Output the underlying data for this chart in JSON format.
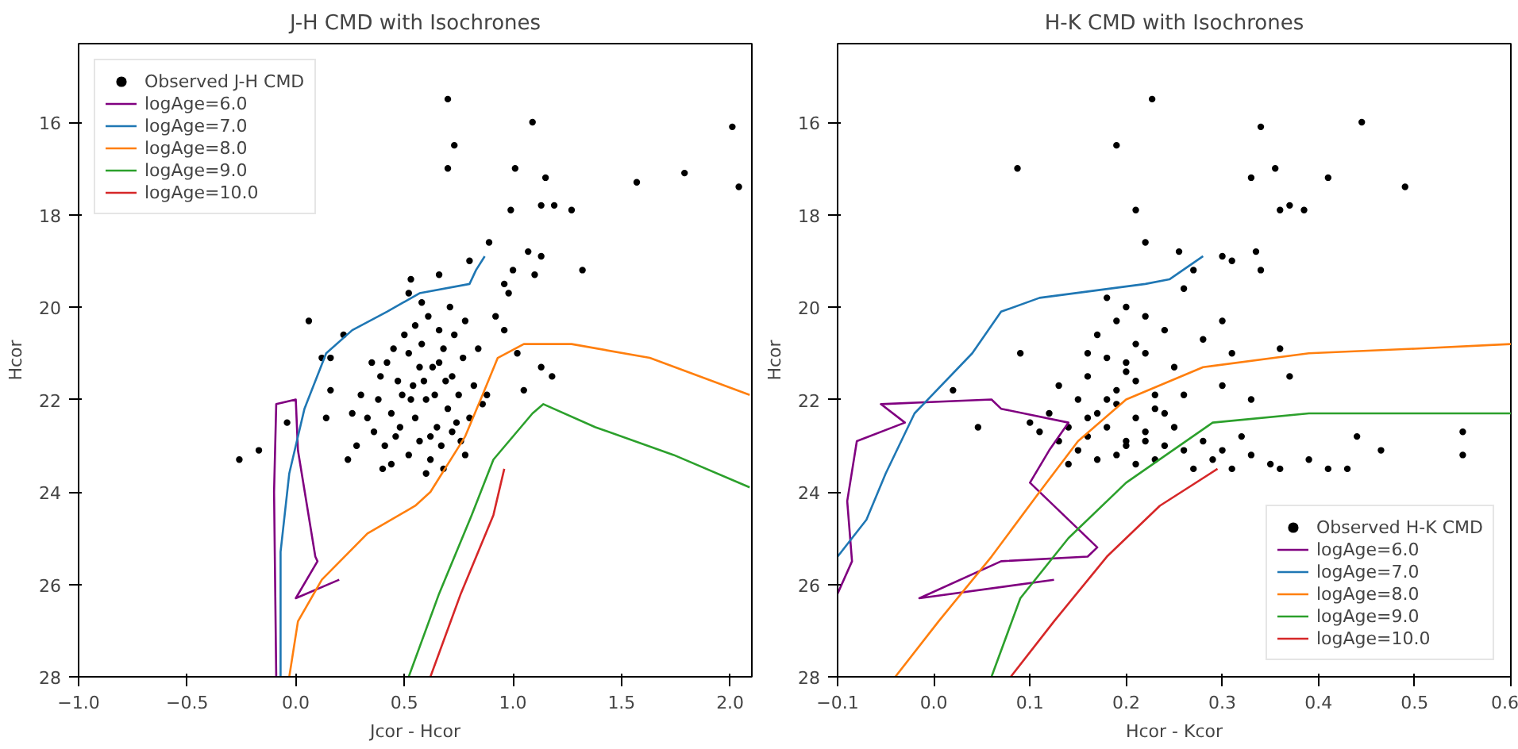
{
  "chart_data": [
    {
      "type": "scatter",
      "title": "J-H CMD with Isochrones",
      "xlabel": "Jcor - Hcor",
      "ylabel": "Hcor",
      "xlim": [
        -1.0,
        2.1
      ],
      "ylim": [
        28,
        14.3
      ],
      "xticks": [
        {
          "value": -1.0,
          "label": "−1.0"
        },
        {
          "value": -0.5,
          "label": "−0.5"
        },
        {
          "value": 0.0,
          "label": "0.0"
        },
        {
          "value": 0.5,
          "label": "0.5"
        },
        {
          "value": 1.0,
          "label": "1.0"
        },
        {
          "value": 1.5,
          "label": "1.5"
        },
        {
          "value": 2.0,
          "label": "2.0"
        }
      ],
      "yticks": [
        16,
        18,
        20,
        22,
        24,
        26,
        28
      ],
      "grid": false,
      "legend": "top left",
      "series": [
        {
          "name": "Observed J-H CMD",
          "marker": "circle",
          "color": "#000000",
          "x": [
            0.7,
            1.09,
            0.73,
            0.7,
            1.01,
            1.15,
            2.01,
            1.57,
            1.79,
            2.04,
            0.99,
            1.13,
            1.19,
            1.27,
            0.89,
            1.07,
            1.13,
            1.1,
            1.32,
            1.0,
            0.96,
            0.98,
            0.06,
            0.22,
            0.16,
            0.12,
            0.16,
            0.14,
            -0.04,
            -0.17,
            -0.26,
            0.24,
            0.4,
            1.02,
            1.13,
            1.18,
            1.05,
            0.96,
            0.92,
            0.53,
            0.66,
            0.8,
            0.42,
            0.47,
            0.52,
            0.58,
            0.63,
            0.68,
            0.72,
            0.77,
            0.82,
            0.38,
            0.44,
            0.49,
            0.55,
            0.6,
            0.65,
            0.7,
            0.75,
            0.8,
            0.86,
            0.36,
            0.41,
            0.46,
            0.52,
            0.57,
            0.62,
            0.67,
            0.72,
            0.78,
            0.33,
            0.3,
            0.55,
            0.61,
            0.66,
            0.71,
            0.5,
            0.45,
            0.59,
            0.64,
            0.69,
            0.74,
            0.54,
            0.48,
            0.39,
            0.35,
            0.62,
            0.57,
            0.53,
            0.66,
            0.88,
            0.84,
            0.6,
            0.68,
            0.44,
            0.73,
            0.78,
            0.58,
            0.52,
            0.26,
            0.28,
            0.76
          ],
          "values": [
            15.5,
            16.0,
            16.5,
            17.0,
            17.0,
            17.2,
            16.1,
            17.3,
            17.1,
            17.4,
            17.9,
            17.8,
            17.8,
            17.9,
            18.6,
            18.8,
            18.9,
            19.3,
            19.2,
            19.2,
            19.5,
            19.7,
            20.3,
            20.6,
            21.1,
            21.1,
            21.8,
            22.4,
            22.5,
            23.1,
            23.3,
            23.3,
            23.5,
            21.0,
            21.3,
            21.5,
            21.8,
            20.5,
            20.2,
            19.4,
            19.3,
            19.0,
            21.2,
            21.6,
            21.0,
            20.8,
            21.3,
            20.9,
            21.5,
            21.1,
            21.7,
            22.0,
            22.3,
            21.9,
            22.4,
            22.0,
            22.6,
            22.2,
            21.9,
            22.4,
            22.1,
            22.7,
            23.0,
            22.8,
            23.2,
            22.9,
            23.3,
            23.0,
            22.7,
            23.2,
            22.4,
            21.9,
            20.4,
            20.2,
            20.5,
            20.0,
            20.6,
            20.9,
            21.6,
            21.9,
            21.6,
            22.5,
            21.7,
            22.6,
            21.5,
            21.2,
            22.8,
            21.3,
            22.0,
            21.2,
            21.9,
            20.9,
            23.6,
            23.5,
            23.4,
            20.6,
            20.3,
            19.9,
            19.7,
            22.3,
            23.0,
            22.9
          ]
        },
        {
          "name": "logAge=6.0",
          "type": "line",
          "color": "#800080",
          "x": [
            -0.09,
            -0.1,
            -0.09,
            0.0,
            0.01,
            0.09,
            0.1,
            0.0,
            0.2
          ],
          "values": [
            28,
            24.0,
            22.1,
            22.0,
            23.1,
            25.4,
            25.5,
            26.3,
            25.9
          ]
        },
        {
          "name": "logAge=7.0",
          "type": "line",
          "color": "#1f77b4",
          "x": [
            -0.07,
            -0.07,
            -0.03,
            0.04,
            0.14,
            0.26,
            0.42,
            0.57,
            0.8,
            0.83,
            0.87
          ],
          "values": [
            28,
            25.3,
            23.6,
            22.2,
            21.0,
            20.5,
            20.1,
            19.7,
            19.5,
            19.2,
            18.9
          ]
        },
        {
          "name": "logAge=8.0",
          "type": "line",
          "color": "#ff7f0e",
          "x": [
            -0.03,
            0.01,
            0.12,
            0.33,
            0.55,
            0.62,
            0.78,
            0.86,
            0.93,
            1.05,
            1.27,
            1.63,
            2.09
          ],
          "values": [
            28,
            26.8,
            25.9,
            24.9,
            24.3,
            24.0,
            22.8,
            21.9,
            21.1,
            20.8,
            20.8,
            21.1,
            21.9
          ]
        },
        {
          "name": "logAge=9.0",
          "type": "line",
          "color": "#2ca02c",
          "x": [
            0.52,
            0.66,
            0.81,
            0.91,
            1.09,
            1.14,
            1.38,
            1.74,
            2.09
          ],
          "values": [
            28,
            26.2,
            24.5,
            23.3,
            22.3,
            22.1,
            22.6,
            23.2,
            23.9
          ]
        },
        {
          "name": "logAge=10.0",
          "type": "line",
          "color": "#d62728",
          "x": [
            0.62,
            0.76,
            0.91,
            0.96
          ],
          "values": [
            28,
            26.2,
            24.5,
            23.5
          ]
        }
      ]
    },
    {
      "type": "scatter",
      "title": "H-K CMD with Isochrones",
      "xlabel": "Hcor - Kcor",
      "ylabel": "Hcor",
      "xlim": [
        -0.1,
        0.6
      ],
      "ylim": [
        28,
        14.3
      ],
      "xticks": [
        {
          "value": -0.1,
          "label": "−0.1"
        },
        {
          "value": 0.0,
          "label": "0.0"
        },
        {
          "value": 0.1,
          "label": "0.1"
        },
        {
          "value": 0.2,
          "label": "0.2"
        },
        {
          "value": 0.3,
          "label": "0.3"
        },
        {
          "value": 0.4,
          "label": "0.4"
        },
        {
          "value": 0.5,
          "label": "0.5"
        },
        {
          "value": 0.6,
          "label": "0.6"
        }
      ],
      "yticks": [
        16,
        18,
        20,
        22,
        24,
        26,
        28
      ],
      "grid": false,
      "legend": "bottom right",
      "series": [
        {
          "name": "Observed H-K CMD",
          "marker": "circle",
          "color": "#000000",
          "x": [
            0.227,
            0.19,
            0.087,
            0.34,
            0.445,
            0.33,
            0.355,
            0.41,
            0.49,
            0.21,
            0.37,
            0.36,
            0.385,
            0.22,
            0.255,
            0.3,
            0.31,
            0.335,
            0.34,
            0.27,
            0.26,
            0.3,
            0.28,
            0.31,
            0.36,
            0.37,
            0.3,
            0.33,
            0.09,
            0.02,
            0.046,
            0.55,
            0.55,
            0.44,
            0.465,
            0.43,
            0.41,
            0.39,
            0.36,
            0.17,
            0.19,
            0.21,
            0.18,
            0.2,
            0.22,
            0.16,
            0.19,
            0.21,
            0.23,
            0.15,
            0.17,
            0.19,
            0.21,
            0.23,
            0.25,
            0.14,
            0.16,
            0.18,
            0.2,
            0.22,
            0.24,
            0.13,
            0.15,
            0.17,
            0.19,
            0.21,
            0.23,
            0.26,
            0.27,
            0.29,
            0.31,
            0.33,
            0.35,
            0.28,
            0.3,
            0.32,
            0.12,
            0.11,
            0.1,
            0.2,
            0.22,
            0.18,
            0.24,
            0.16,
            0.25,
            0.13,
            0.26,
            0.24,
            0.14,
            0.2,
            0.18,
            0.22,
            0.16,
            0.2
          ],
          "values": [
            15.5,
            16.5,
            17.0,
            16.1,
            16.0,
            17.2,
            17.0,
            17.2,
            17.4,
            17.9,
            17.8,
            17.9,
            17.9,
            18.6,
            18.8,
            18.9,
            19.0,
            18.8,
            19.2,
            19.2,
            19.6,
            20.3,
            20.7,
            21.0,
            20.9,
            21.5,
            21.7,
            22.0,
            21.0,
            21.8,
            22.6,
            22.7,
            23.2,
            22.8,
            23.1,
            23.5,
            23.5,
            23.3,
            23.5,
            20.6,
            20.3,
            20.8,
            21.1,
            21.4,
            21.0,
            21.5,
            21.8,
            21.6,
            21.9,
            22.0,
            22.3,
            22.1,
            22.4,
            22.2,
            22.6,
            22.6,
            22.8,
            22.6,
            22.9,
            22.7,
            23.0,
            22.9,
            23.1,
            23.3,
            23.2,
            23.4,
            23.3,
            23.1,
            23.5,
            23.3,
            23.5,
            23.2,
            23.4,
            22.9,
            23.1,
            22.8,
            22.3,
            22.7,
            22.5,
            20.0,
            20.2,
            19.8,
            20.5,
            21.0,
            21.3,
            21.7,
            21.9,
            22.3,
            23.4,
            21.2,
            22.0,
            22.9,
            22.4,
            23.0
          ]
        },
        {
          "name": "logAge=6.0",
          "type": "line",
          "color": "#800080",
          "x": [
            -0.1,
            -0.085,
            -0.09,
            -0.08,
            -0.03,
            -0.055,
            0.06,
            0.07,
            0.14,
            0.12,
            0.1,
            0.17,
            0.16,
            0.07,
            -0.015,
            0.125
          ],
          "values": [
            26.2,
            25.5,
            24.2,
            22.9,
            22.5,
            22.1,
            22.0,
            22.2,
            22.5,
            23.1,
            23.8,
            25.2,
            25.4,
            25.5,
            26.3,
            25.9
          ]
        },
        {
          "name": "logAge=7.0",
          "type": "line",
          "color": "#1f77b4",
          "x": [
            -0.1,
            -0.07,
            -0.05,
            -0.02,
            0.04,
            0.07,
            0.11,
            0.22,
            0.245,
            0.28
          ],
          "values": [
            25.4,
            24.6,
            23.6,
            22.3,
            21.0,
            20.1,
            19.8,
            19.5,
            19.4,
            18.9
          ]
        },
        {
          "name": "logAge=8.0",
          "type": "line",
          "color": "#ff7f0e",
          "x": [
            -0.04,
            0.005,
            0.06,
            0.11,
            0.15,
            0.2,
            0.28,
            0.39,
            0.5,
            0.6
          ],
          "values": [
            28,
            26.8,
            25.4,
            24.0,
            22.9,
            22.0,
            21.3,
            21.0,
            20.9,
            20.8
          ]
        },
        {
          "name": "logAge=9.0",
          "type": "line",
          "color": "#2ca02c",
          "x": [
            0.06,
            0.09,
            0.14,
            0.2,
            0.29,
            0.39,
            0.5,
            0.6
          ],
          "values": [
            28,
            26.3,
            25.0,
            23.8,
            22.5,
            22.3,
            22.3,
            22.3
          ]
        },
        {
          "name": "logAge=10.0",
          "type": "line",
          "color": "#d62728",
          "x": [
            0.08,
            0.125,
            0.18,
            0.235,
            0.295
          ],
          "values": [
            28,
            26.8,
            25.4,
            24.3,
            23.5
          ]
        }
      ]
    }
  ]
}
